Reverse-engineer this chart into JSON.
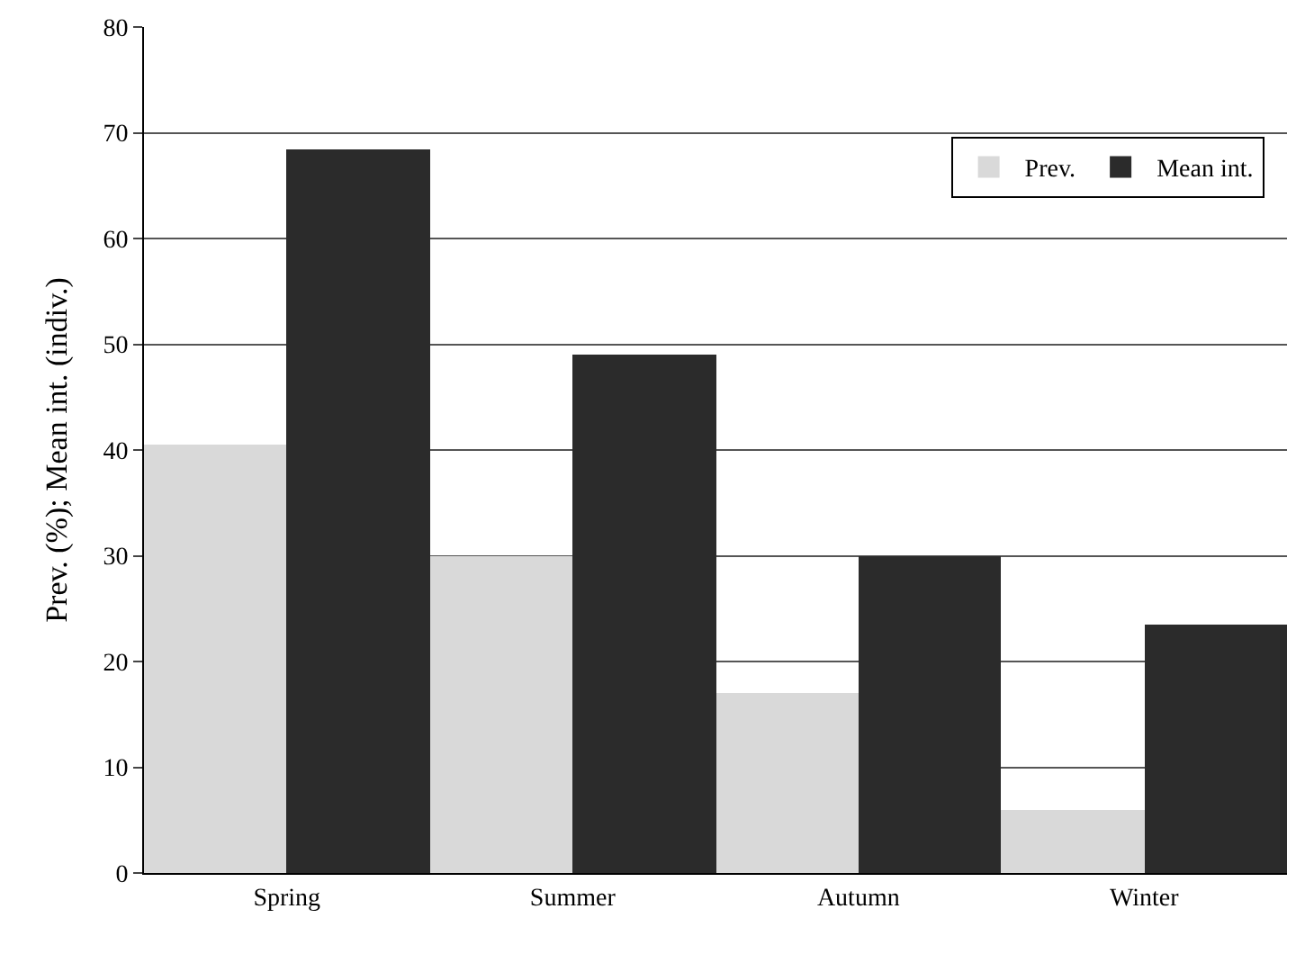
{
  "chart_data": {
    "type": "bar",
    "ylabel": "Prev. (%); Mean int. (indiv.)",
    "categories": [
      "Spring",
      "Summer",
      "Autumn",
      "Winter"
    ],
    "series": [
      {
        "name": "Prev.",
        "color": "#d9d9d9",
        "values": [
          40.5,
          30,
          17,
          6
        ]
      },
      {
        "name": "Mean int.",
        "color": "#2b2b2b",
        "values": [
          68.5,
          49,
          30,
          23.5
        ]
      }
    ],
    "ylim": [
      0,
      80
    ],
    "yticks": [
      0,
      10,
      20,
      30,
      40,
      50,
      60,
      70,
      80
    ],
    "grid": "y",
    "legend": "top right"
  }
}
